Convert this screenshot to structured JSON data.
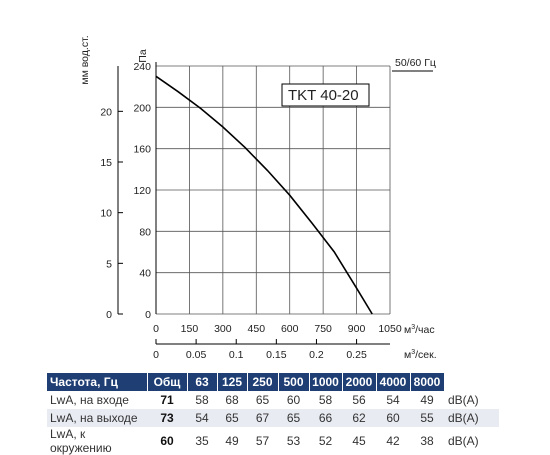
{
  "chart_data": {
    "type": "line",
    "model_label": "TKT 40-20",
    "frequency_label": "50/60 Гц",
    "y_left_outer_label": "мм вод.ст.",
    "y_left_outer_ticks": [
      "0",
      "5",
      "10",
      "15",
      "20"
    ],
    "y_label": "Па",
    "y_ticks": [
      "0",
      "40",
      "80",
      "120",
      "160",
      "200",
      "240"
    ],
    "ylim": [
      0,
      240
    ],
    "x_label": "м³/час",
    "x_ticks": [
      "0",
      "150",
      "300",
      "450",
      "600",
      "750",
      "900",
      "1050"
    ],
    "xlim": [
      0,
      1050
    ],
    "x2_label": "м³/сек.",
    "x2_ticks": [
      "0",
      "0.05",
      "0.1",
      "0.15",
      "0.2",
      "0.25"
    ],
    "grid": true,
    "series": [
      {
        "x": [
          0,
          100,
          200,
          300,
          400,
          500,
          600,
          700,
          800,
          900,
          970
        ],
        "y": [
          230,
          215,
          199,
          181,
          161,
          139,
          115,
          88,
          60,
          25,
          0
        ]
      }
    ]
  },
  "noise_table": {
    "headers": [
      "Частота, Гц",
      "Общ",
      "63",
      "125",
      "250",
      "500",
      "1000",
      "2000",
      "4000",
      "8000",
      ""
    ],
    "rows": [
      {
        "label": "LwA, на входе",
        "total": "71",
        "values": [
          "58",
          "68",
          "65",
          "60",
          "58",
          "56",
          "54",
          "49"
        ],
        "unit": "dB(A)"
      },
      {
        "label": "LwA, на выходе",
        "total": "73",
        "values": [
          "54",
          "65",
          "67",
          "65",
          "66",
          "62",
          "60",
          "55"
        ],
        "unit": "dB(A)"
      },
      {
        "label": "LwA, к окружению",
        "total": "60",
        "values": [
          "35",
          "49",
          "57",
          "53",
          "52",
          "45",
          "42",
          "38"
        ],
        "unit": "dB(A)"
      }
    ]
  }
}
